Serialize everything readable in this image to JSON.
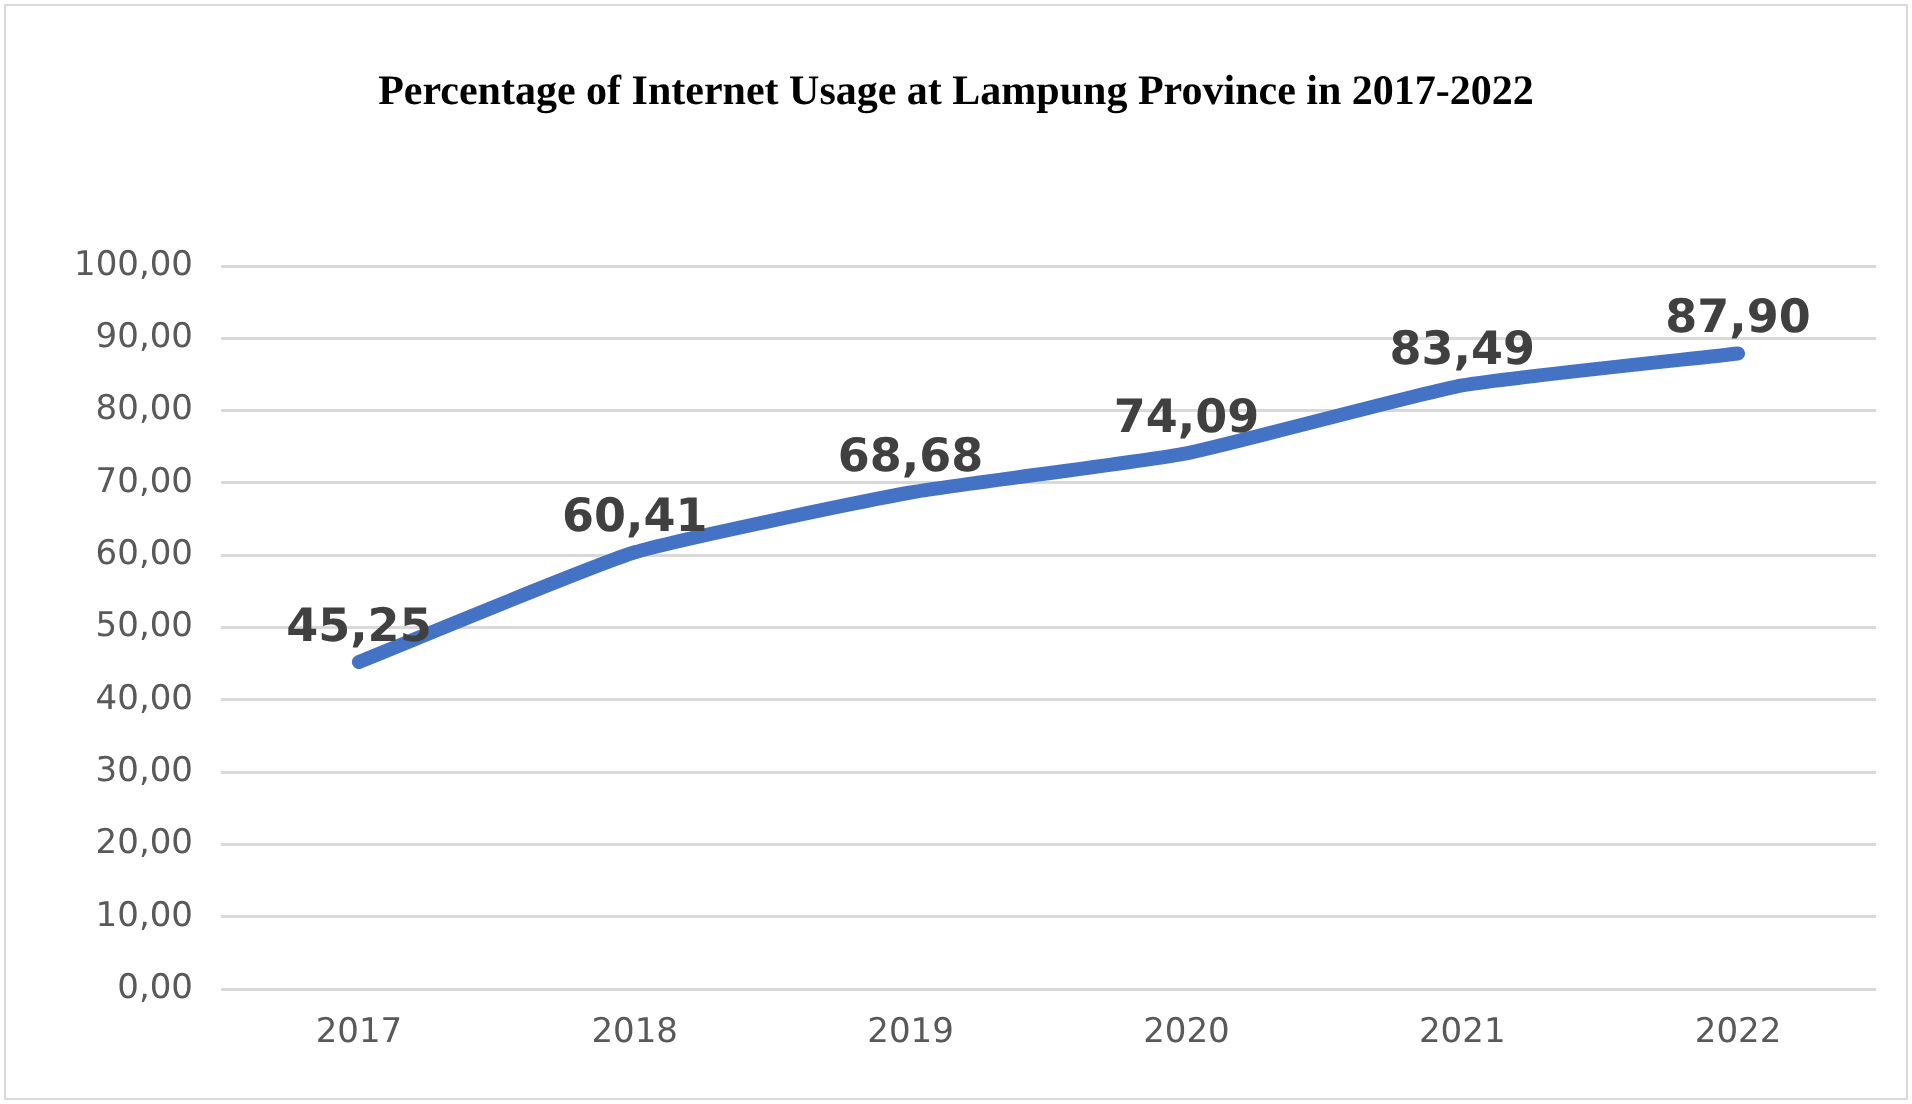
{
  "chart_data": {
    "type": "line",
    "title": "Percentage of Internet Usage at Lampung Province in 2017-2022",
    "categories": [
      "2017",
      "2018",
      "2019",
      "2020",
      "2021",
      "2022"
    ],
    "series": [
      {
        "color": "#4472c4",
        "values": [
          45.25,
          60.41,
          68.68,
          74.09,
          83.49,
          87.9
        ],
        "value_labels": [
          "45,25",
          "60,41",
          "68,68",
          "74,09",
          "83,49",
          "87,90"
        ]
      }
    ],
    "ylim": [
      0,
      100
    ],
    "yticks": [
      {
        "value": 0,
        "label": "0,00"
      },
      {
        "value": 10,
        "label": "10,00"
      },
      {
        "value": 20,
        "label": "20,00"
      },
      {
        "value": 30,
        "label": "30,00"
      },
      {
        "value": 40,
        "label": "40,00"
      },
      {
        "value": 50,
        "label": "50,00"
      },
      {
        "value": 60,
        "label": "60,00"
      },
      {
        "value": 70,
        "label": "70,00"
      },
      {
        "value": 80,
        "label": "80,00"
      },
      {
        "value": 90,
        "label": "90,00"
      },
      {
        "value": 100,
        "label": "100,00"
      }
    ],
    "grid": "y",
    "legend": false,
    "marker": "none",
    "line_style": "solid"
  }
}
